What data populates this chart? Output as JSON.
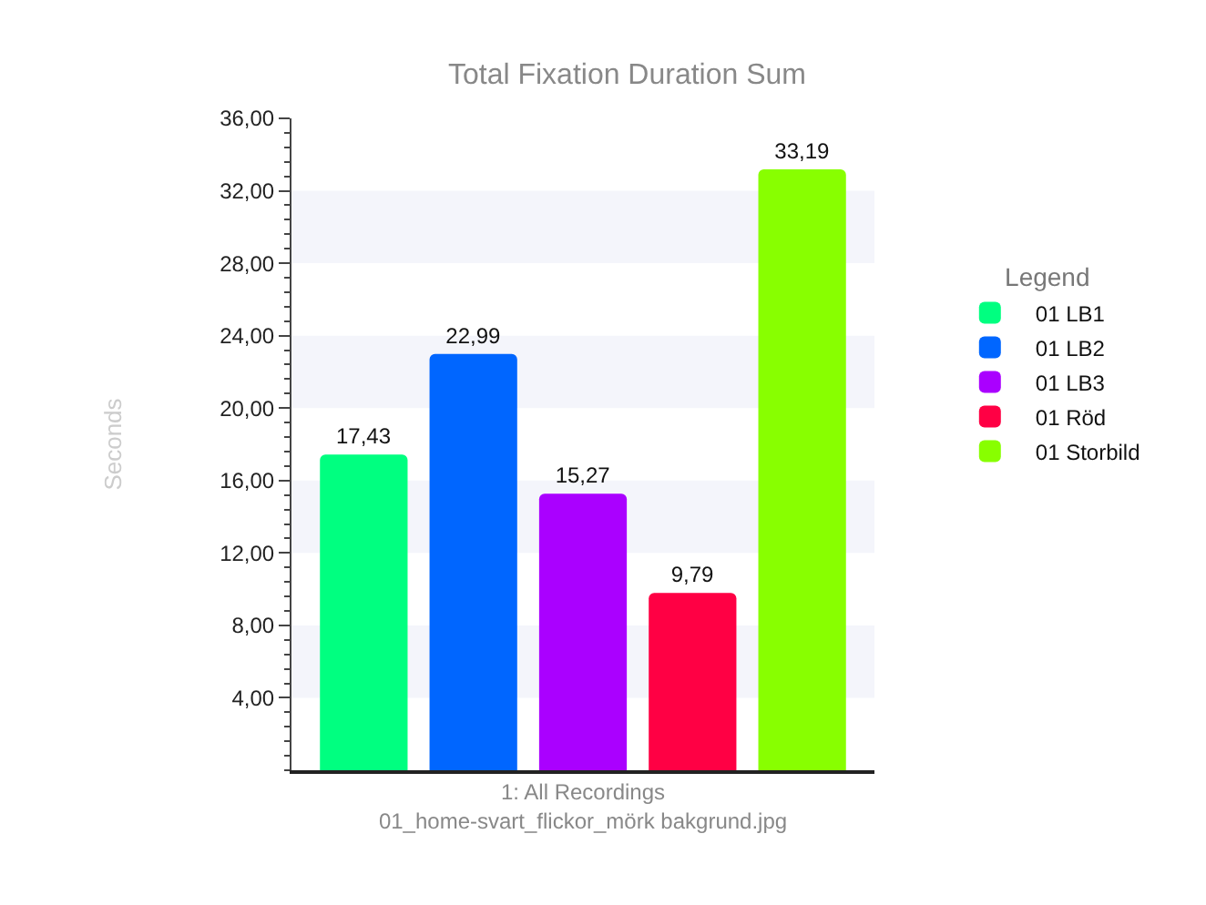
{
  "chart_data": {
    "type": "bar",
    "title": "Total Fixation Duration Sum",
    "ylabel": "Seconds",
    "legend_title": "Legend",
    "categories": [
      "1: All Recordings\n01_home-svart_flickor_mörk bakgrund.jpg"
    ],
    "series": [
      {
        "name": "01 LB1",
        "color": "#00ff80",
        "values": [
          17.43
        ],
        "value_labels": [
          "17,43"
        ]
      },
      {
        "name": "01 LB2",
        "color": "#0066ff",
        "values": [
          22.99
        ],
        "value_labels": [
          "22,99"
        ]
      },
      {
        "name": "01 LB3",
        "color": "#aa00ff",
        "values": [
          15.27
        ],
        "value_labels": [
          "15,27"
        ]
      },
      {
        "name": "01 Röd",
        "color": "#ff0044",
        "values": [
          9.79
        ],
        "value_labels": [
          "9,79"
        ]
      },
      {
        "name": "01 Storbild",
        "color": "#88ff00",
        "values": [
          33.19
        ],
        "value_labels": [
          "33,19"
        ]
      }
    ],
    "ylim": [
      0,
      36
    ],
    "yticks": [
      {
        "value": 4,
        "label": "4,00"
      },
      {
        "value": 8,
        "label": "8,00"
      },
      {
        "value": 12,
        "label": "12,00"
      },
      {
        "value": 16,
        "label": "16,00"
      },
      {
        "value": 20,
        "label": "20,00"
      },
      {
        "value": 24,
        "label": "24,00"
      },
      {
        "value": 28,
        "label": "28,00"
      },
      {
        "value": 32,
        "label": "32,00"
      },
      {
        "value": 36,
        "label": "36,00"
      }
    ],
    "bands": [
      {
        "axis": "y",
        "from": 4,
        "to": 8,
        "color": "#f4f5fb"
      },
      {
        "axis": "y",
        "from": 12,
        "to": 16,
        "color": "#f4f5fb"
      },
      {
        "axis": "y",
        "from": 20,
        "to": 24,
        "color": "#f4f5fb"
      },
      {
        "axis": "y",
        "from": 28,
        "to": 32,
        "color": "#f4f5fb"
      }
    ],
    "legend": "right"
  }
}
